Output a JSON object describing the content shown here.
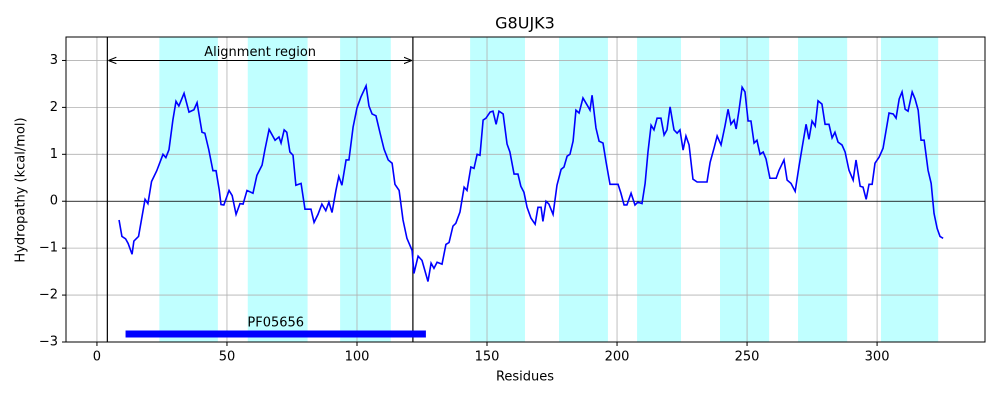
{
  "chart_data": {
    "type": "line",
    "title": "G8UJK3",
    "xlabel": "Residues",
    "ylabel": "Hydropathy (kcal/mol)",
    "xlim": [
      -11.9,
      341.5
    ],
    "ylim": [
      -3,
      3.5
    ],
    "xticks": [
      0,
      50,
      100,
      150,
      200,
      250,
      300
    ],
    "yticks": [
      {
        "value": -3,
        "label": "−3"
      },
      {
        "value": -2,
        "label": "−2"
      },
      {
        "value": -1,
        "label": "−1"
      },
      0,
      1,
      2,
      3
    ],
    "grid": true,
    "zero_line": true,
    "regions": [
      [
        24,
        46.5
      ],
      [
        58,
        81
      ],
      [
        93.5,
        113
      ],
      [
        143.5,
        164.6
      ],
      [
        177.7,
        196.5
      ],
      [
        207.7,
        224.6
      ],
      [
        239.6,
        258.5
      ],
      [
        269.6,
        288.5
      ],
      [
        301.5,
        323.5
      ]
    ],
    "region_color": "#c0ffff",
    "alignment": {
      "label": "Alignment region",
      "span": [
        4,
        121.5
      ],
      "y": 3
    },
    "domains": [
      {
        "name": "PF05656",
        "start": 11,
        "end": 126.5,
        "y": -2.83,
        "color": "#0000ff"
      }
    ],
    "x": [
      8.5,
      9.6,
      11,
      12,
      13.5,
      14.2,
      16,
      18.5,
      19.6,
      21,
      23,
      25.4,
      26.5,
      27.7,
      29.2,
      30.4,
      31.5,
      33.5,
      35.4,
      37.3,
      38.5,
      40.4,
      41.5,
      43,
      44.6,
      45.8,
      47,
      47.7,
      48.8,
      50.8,
      52,
      53.5,
      55,
      56.2,
      57.7,
      60,
      61.5,
      63.5,
      64.6,
      66.2,
      68.5,
      70,
      70.8,
      72,
      73,
      74.2,
      75.4,
      76.5,
      78.5,
      80,
      82.3,
      83.5,
      85,
      86.5,
      88,
      89.2,
      90.4,
      91.9,
      93,
      94.2,
      95.8,
      96.9,
      98.5,
      100,
      101.5,
      103.5,
      104.6,
      105.8,
      107.3,
      108.8,
      110.4,
      112,
      113.5,
      114.6,
      116.2,
      117.7,
      119.2,
      121.2,
      121.9,
      123.5,
      125,
      127.3,
      128.5,
      129.6,
      130.8,
      132.7,
      134.2,
      135.4,
      136.9,
      138,
      139.6,
      141.2,
      142.3,
      143.8,
      145,
      146.2,
      147.3,
      148.5,
      149.6,
      151.2,
      152.3,
      153.5,
      154.6,
      156.2,
      157.7,
      158.8,
      160.4,
      161.9,
      163,
      164.2,
      165.4,
      166.9,
      168.5,
      169.6,
      170.8,
      171.5,
      172.7,
      173.8,
      175.4,
      176.9,
      178.5,
      179.6,
      180.8,
      181.9,
      183.1,
      184.2,
      185.4,
      186.9,
      188.5,
      189.6,
      190.4,
      191.9,
      193.1,
      194.6,
      195.8,
      197.3,
      198.8,
      200.4,
      201.5,
      202.7,
      203.8,
      205.4,
      206.9,
      208,
      209.6,
      210.8,
      211.9,
      213.1,
      214.2,
      215.4,
      216.9,
      218.1,
      219.2,
      220.4,
      221.9,
      223.1,
      224.2,
      225.4,
      226.5,
      227.7,
      229.2,
      230.8,
      232.3,
      234.6,
      235.8,
      237.3,
      238.5,
      240,
      241.5,
      242.7,
      243.8,
      245,
      245.8,
      246.9,
      248.1,
      249.2,
      250.4,
      251.5,
      252.7,
      253.8,
      255,
      256.2,
      257.3,
      258.8,
      261.2,
      262.3,
      264.2,
      265.4,
      266.9,
      268.5,
      270,
      271.2,
      272.7,
      273.8,
      275,
      276.2,
      277.3,
      278.8,
      280,
      281.5,
      282.7,
      283.8,
      285,
      286.5,
      287.7,
      289.2,
      290.8,
      291.9,
      293.5,
      294.6,
      295.8,
      296.9,
      298.1,
      299.2,
      300.8,
      302.3,
      303.5,
      304.6,
      306.2,
      307.3,
      308.5,
      309.6,
      310.8,
      311.9,
      313.5,
      314.6,
      315.8,
      316.9,
      318.1,
      319.6,
      320.8,
      321.9,
      323.1,
      324.2,
      325.4
    ],
    "series": [
      {
        "color": "#0000ff",
        "values": [
          -0.4,
          -0.75,
          -0.8,
          -0.9,
          -1.13,
          -0.85,
          -0.75,
          0.04,
          -0.05,
          0.42,
          0.65,
          1.0,
          0.93,
          1.1,
          1.73,
          2.13,
          2.03,
          2.3,
          1.9,
          1.95,
          2.1,
          1.47,
          1.45,
          1.1,
          0.65,
          0.65,
          0.25,
          -0.07,
          -0.08,
          0.23,
          0.12,
          -0.28,
          -0.05,
          -0.06,
          0.23,
          0.17,
          0.55,
          0.77,
          1.1,
          1.53,
          1.3,
          1.37,
          1.24,
          1.52,
          1.47,
          1.05,
          0.98,
          0.34,
          0.38,
          -0.17,
          -0.17,
          -0.45,
          -0.28,
          -0.06,
          -0.2,
          -0.02,
          -0.24,
          0.23,
          0.53,
          0.34,
          0.88,
          0.88,
          1.58,
          1.99,
          2.22,
          2.46,
          2.03,
          1.86,
          1.82,
          1.47,
          1.11,
          0.88,
          0.81,
          0.36,
          0.23,
          -0.4,
          -0.79,
          -1.05,
          -1.54,
          -1.17,
          -1.26,
          -1.71,
          -1.32,
          -1.43,
          -1.3,
          -1.34,
          -0.92,
          -0.88,
          -0.53,
          -0.47,
          -0.23,
          0.3,
          0.23,
          0.73,
          0.7,
          1.0,
          0.98,
          1.73,
          1.77,
          1.9,
          1.92,
          1.64,
          1.92,
          1.86,
          1.22,
          1.05,
          0.58,
          0.58,
          0.32,
          0.19,
          -0.13,
          -0.36,
          -0.49,
          -0.13,
          -0.13,
          -0.43,
          0,
          -0.06,
          -0.28,
          0.34,
          0.68,
          0.73,
          0.96,
          1.0,
          1.28,
          1.94,
          1.88,
          2.2,
          2.05,
          1.94,
          2.26,
          1.56,
          1.28,
          1.24,
          0.83,
          0.36,
          0.36,
          0.36,
          0.17,
          -0.08,
          -0.08,
          0.17,
          -0.08,
          -0.02,
          -0.05,
          0.38,
          1.05,
          1.62,
          1.52,
          1.77,
          1.77,
          1.41,
          1.52,
          2.01,
          1.52,
          1.45,
          1.52,
          1.09,
          1.39,
          1.2,
          0.47,
          0.41,
          0.41,
          0.41,
          0.83,
          1.13,
          1.39,
          1.2,
          1.6,
          1.96,
          1.64,
          1.73,
          1.54,
          1.94,
          2.43,
          2.33,
          1.71,
          1.71,
          1.24,
          1.3,
          1.0,
          1.05,
          0.9,
          0.49,
          0.49,
          0.66,
          0.88,
          0.45,
          0.38,
          0.21,
          0.75,
          1.15,
          1.64,
          1.32,
          1.71,
          1.6,
          2.14,
          2.07,
          1.64,
          1.64,
          1.35,
          1.47,
          1.26,
          1.2,
          1.05,
          0.66,
          0.45,
          0.88,
          0.32,
          0.3,
          0.04,
          0.36,
          0.36,
          0.81,
          0.94,
          1.13,
          1.52,
          1.88,
          1.86,
          1.77,
          2.18,
          2.33,
          1.96,
          1.92,
          2.33,
          2.18,
          1.94,
          1.3,
          1.3,
          0.66,
          0.38,
          -0.26,
          -0.58,
          -0.75,
          -0.79
        ]
      }
    ]
  }
}
